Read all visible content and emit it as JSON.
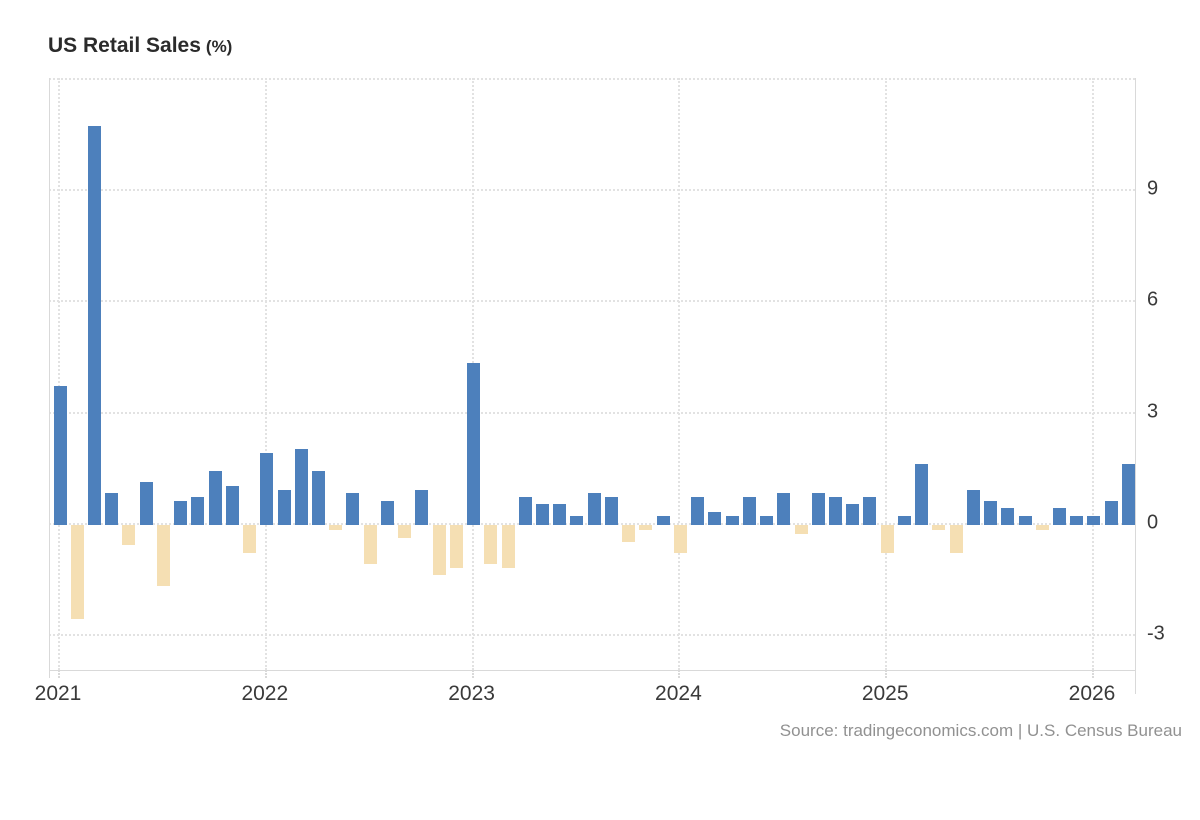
{
  "title": {
    "main": "US Retail Sales",
    "unit": "(%)"
  },
  "source": "Source: tradingeconomics.com | U.S. Census Bureau",
  "chart_data": {
    "type": "bar",
    "title": "US Retail Sales (%)",
    "x": [
      "2021-01",
      "2021-02",
      "2021-03",
      "2021-04",
      "2021-05",
      "2021-06",
      "2021-07",
      "2021-08",
      "2021-09",
      "2021-10",
      "2021-11",
      "2021-12",
      "2022-01",
      "2022-02",
      "2022-03",
      "2022-04",
      "2022-05",
      "2022-06",
      "2022-07",
      "2022-08",
      "2022-09",
      "2022-10",
      "2022-11",
      "2022-12",
      "2023-01",
      "2023-02",
      "2023-03",
      "2023-04",
      "2023-05",
      "2023-06",
      "2023-07",
      "2023-08",
      "2023-09",
      "2023-10",
      "2023-11",
      "2023-12",
      "2024-01",
      "2024-02",
      "2024-03",
      "2024-04",
      "2024-05",
      "2024-06",
      "2024-07",
      "2024-08",
      "2024-09",
      "2024-10",
      "2024-11",
      "2024-12",
      "2025-01",
      "2025-02",
      "2025-03",
      "2025-04",
      "2025-05",
      "2025-06",
      "2025-07",
      "2025-08",
      "2025-09",
      "2025-10",
      "2025-11",
      "2025-12",
      "2026-01",
      "2026-02",
      "2026-03"
    ],
    "values": [
      3.7,
      -2.6,
      10.7,
      0.8,
      -0.6,
      1.1,
      -1.7,
      0.6,
      0.7,
      1.4,
      1.0,
      -0.8,
      1.9,
      0.9,
      2.0,
      1.4,
      -0.2,
      0.8,
      -1.1,
      0.6,
      -0.4,
      0.9,
      -1.4,
      -1.2,
      4.3,
      -1.1,
      -1.2,
      0.7,
      0.5,
      0.5,
      0.2,
      0.8,
      0.7,
      -0.5,
      -0.2,
      0.2,
      -0.8,
      0.7,
      0.3,
      0.2,
      0.7,
      0.2,
      0.8,
      -0.3,
      0.8,
      0.7,
      0.5,
      0.7,
      -0.8,
      0.2,
      1.6,
      -0.2,
      -0.8,
      0.9,
      0.6,
      0.4,
      0.2,
      -0.2,
      0.4,
      0.2,
      0.2,
      0.6,
      1.6
    ],
    "x_tick_labels": [
      "2021",
      "2022",
      "2023",
      "2024",
      "2025",
      "2026"
    ],
    "y_ticks": [
      9,
      6,
      3,
      0,
      -3
    ],
    "y_grid_values": [
      12,
      9,
      6,
      3,
      0,
      -3
    ],
    "ylim": [
      -4.0,
      12.0
    ],
    "grid": "dotted",
    "legend": "none",
    "positive_color": "#4d80bc",
    "negative_color": "#f5dfb3"
  }
}
